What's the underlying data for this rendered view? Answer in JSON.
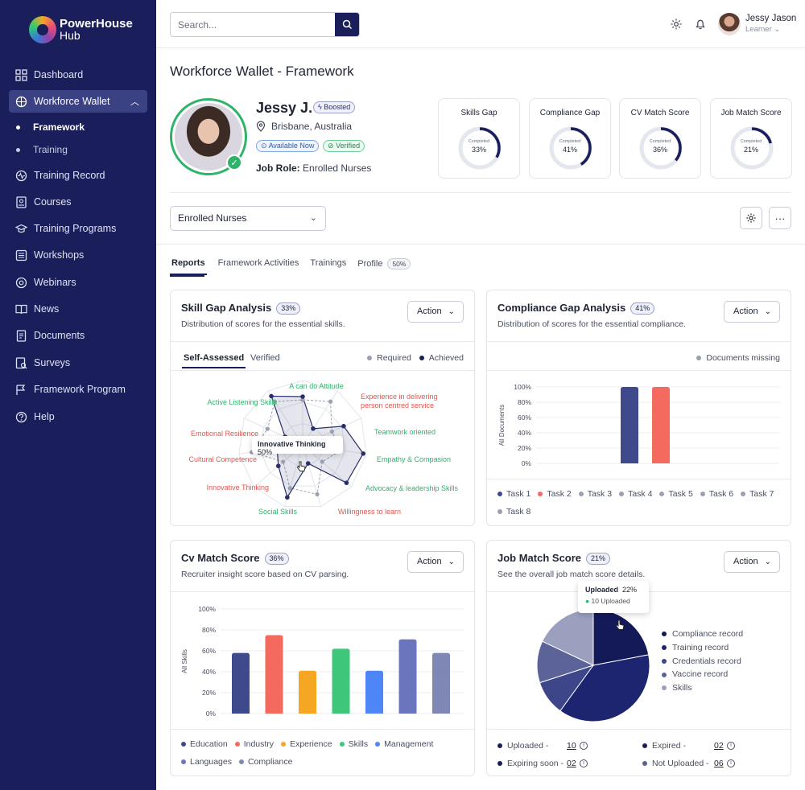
{
  "brand": {
    "line1": "PowerHouse",
    "line2": "Hub"
  },
  "sidebar": {
    "items": [
      {
        "label": "Dashboard",
        "icon": "grid-icon"
      },
      {
        "label": "Workforce Wallet",
        "icon": "wallet-icon"
      },
      {
        "label": "Training Record",
        "icon": "record-icon"
      },
      {
        "label": "Courses",
        "icon": "courses-icon"
      },
      {
        "label": "Training Programs",
        "icon": "mortarboard-icon"
      },
      {
        "label": "Workshops",
        "icon": "workshop-icon"
      },
      {
        "label": "Webinars",
        "icon": "webinar-icon"
      },
      {
        "label": "News",
        "icon": "book-icon"
      },
      {
        "label": "Documents",
        "icon": "document-icon"
      },
      {
        "label": "Surveys",
        "icon": "survey-icon"
      },
      {
        "label": "Framework Program",
        "icon": "framework-icon"
      },
      {
        "label": "Help",
        "icon": "help-icon"
      }
    ],
    "subitems": [
      {
        "label": "Framework"
      },
      {
        "label": "Training"
      }
    ]
  },
  "topbar": {
    "search_placeholder": "Search...",
    "user_name": "Jessy Jason",
    "user_role": "Learner"
  },
  "page": {
    "title": "Workforce Wallet - Framework"
  },
  "profile": {
    "name": "Jessy J.",
    "boosted": "Boosted",
    "location": "Brisbane, Australia",
    "available": "Available Now",
    "verified": "Verified",
    "job_role_label": "Job Role:",
    "job_role": "Enrolled Nurses"
  },
  "gauges": [
    {
      "title": "Skills Gap",
      "caption": "Completed",
      "value": "33%",
      "fraction": 0.33
    },
    {
      "title": "Compliance Gap",
      "caption": "Completed",
      "value": "41%",
      "fraction": 0.41
    },
    {
      "title": "CV Match Score",
      "caption": "Completed",
      "value": "36%",
      "fraction": 0.36
    },
    {
      "title": "Job Match Score",
      "caption": "Completed",
      "value": "21%",
      "fraction": 0.21
    }
  ],
  "role_select": "Enrolled Nurses",
  "tabs": [
    {
      "label": "Reports"
    },
    {
      "label": "Framework Activities"
    },
    {
      "label": "Trainings"
    },
    {
      "label": "Profile",
      "count": "50%"
    }
  ],
  "skill_gap": {
    "title": "Skill Gap Analysis",
    "badge": "33%",
    "subtitle": "Distribution of scores for the essential skills.",
    "action": "Action",
    "subtabs": [
      "Self-Assessed",
      "Verified"
    ],
    "legend": [
      "Required",
      "Achieved"
    ],
    "tooltip_label": "Innovative Thinking",
    "tooltip_value": "50%"
  },
  "compliance_gap": {
    "title": "Compliance Gap Analysis",
    "badge": "41%",
    "subtitle": "Distribution of scores for the essential compliance.",
    "action": "Action",
    "legend": "Documents missing"
  },
  "cv_match": {
    "title": "Cv Match Score",
    "badge": "36%",
    "subtitle": "Recruiter insight score based on CV parsing.",
    "action": "Action"
  },
  "job_match": {
    "title": "Job Match Score",
    "badge": "21%",
    "subtitle": "See the overall job match score details.",
    "action": "Action",
    "tooltip_title": "Uploaded",
    "tooltip_pct": "22%",
    "tooltip_sub": "10 Uploaded",
    "stats": [
      {
        "label": "Uploaded -",
        "value": "10",
        "color": "#1a1f5c"
      },
      {
        "label": "Expired -",
        "value": "02",
        "color": "#1a1f5c"
      },
      {
        "label": "Expiring soon -",
        "value": "02",
        "color": "#1a1f5c"
      },
      {
        "label": "Not Uploaded -",
        "value": "06",
        "color": "#5a628f"
      }
    ]
  },
  "chart_data": [
    {
      "type": "radar",
      "axes": [
        "A can do Attitude",
        "Experience in delivering person centred service",
        "Teamwork oriented",
        "Empathy & Compasion",
        "Advocacy & leadership Skills",
        "Willingness to learn",
        "Social Skills",
        "Innovative Thinking",
        "Cultural Competence",
        "Emotional Resilience",
        "Active Listening Skills"
      ],
      "axis_colors": [
        "#2fb36b",
        "#e0574f",
        "#2fb36b",
        "#2fb36b",
        "#2fb36b",
        "#e0574f",
        "#2fb36b",
        "#e0574f",
        "#e0574f",
        "#e0574f",
        "#2fb36b"
      ],
      "series": [
        {
          "name": "Required",
          "values": [
            70,
            80,
            50,
            60,
            40,
            80,
            70,
            40,
            80,
            60,
            80
          ],
          "color": "#9aa0b0"
        },
        {
          "name": "Achieved",
          "values": [
            75,
            30,
            70,
            95,
            90,
            30,
            85,
            50,
            40,
            30,
            90
          ],
          "color": "#2a2f6b"
        }
      ]
    },
    {
      "type": "bar",
      "ylabel": "All Documents",
      "yticks": [
        "0%",
        "20%",
        "40%",
        "60%",
        "80%",
        "100%"
      ],
      "ylim": [
        0,
        100
      ],
      "categories": [
        "Task 1",
        "Task 2",
        "Task 3",
        "Task 4",
        "Task 5",
        "Task 6",
        "Task 7",
        "Task 8"
      ],
      "colors": [
        "#3e4a8c",
        "#f46a5e",
        "#9aa0b0",
        "#9aa0b0",
        "#9aa0b0",
        "#9aa0b0",
        "#9aa0b0",
        "#9aa0b0"
      ],
      "values": [
        100,
        100,
        null,
        null,
        null,
        null,
        null,
        null
      ]
    },
    {
      "type": "bar",
      "ylabel": "All Skills",
      "yticks": [
        "0%",
        "20%",
        "40%",
        "60%",
        "80%",
        "100%"
      ],
      "ylim": [
        0,
        100
      ],
      "categories": [
        "Education",
        "Industry",
        "Experience",
        "Skills",
        "Management",
        "Languages",
        "Compliance"
      ],
      "colors": [
        "#3e4a8c",
        "#f46a5e",
        "#f5a623",
        "#3ec77a",
        "#4f86f7",
        "#6b75be",
        "#7f88b5"
      ],
      "values": [
        58,
        75,
        41,
        62,
        41,
        71,
        58
      ]
    },
    {
      "type": "pie",
      "labels": [
        "Compliance record",
        "Training record",
        "Credentials record",
        "Vaccine record",
        "Skills"
      ],
      "colors": [
        "#141a58",
        "#1e2570",
        "#3d4689",
        "#5b6399",
        "#9aa0be"
      ],
      "values": [
        22,
        38,
        10,
        12,
        18
      ]
    }
  ]
}
